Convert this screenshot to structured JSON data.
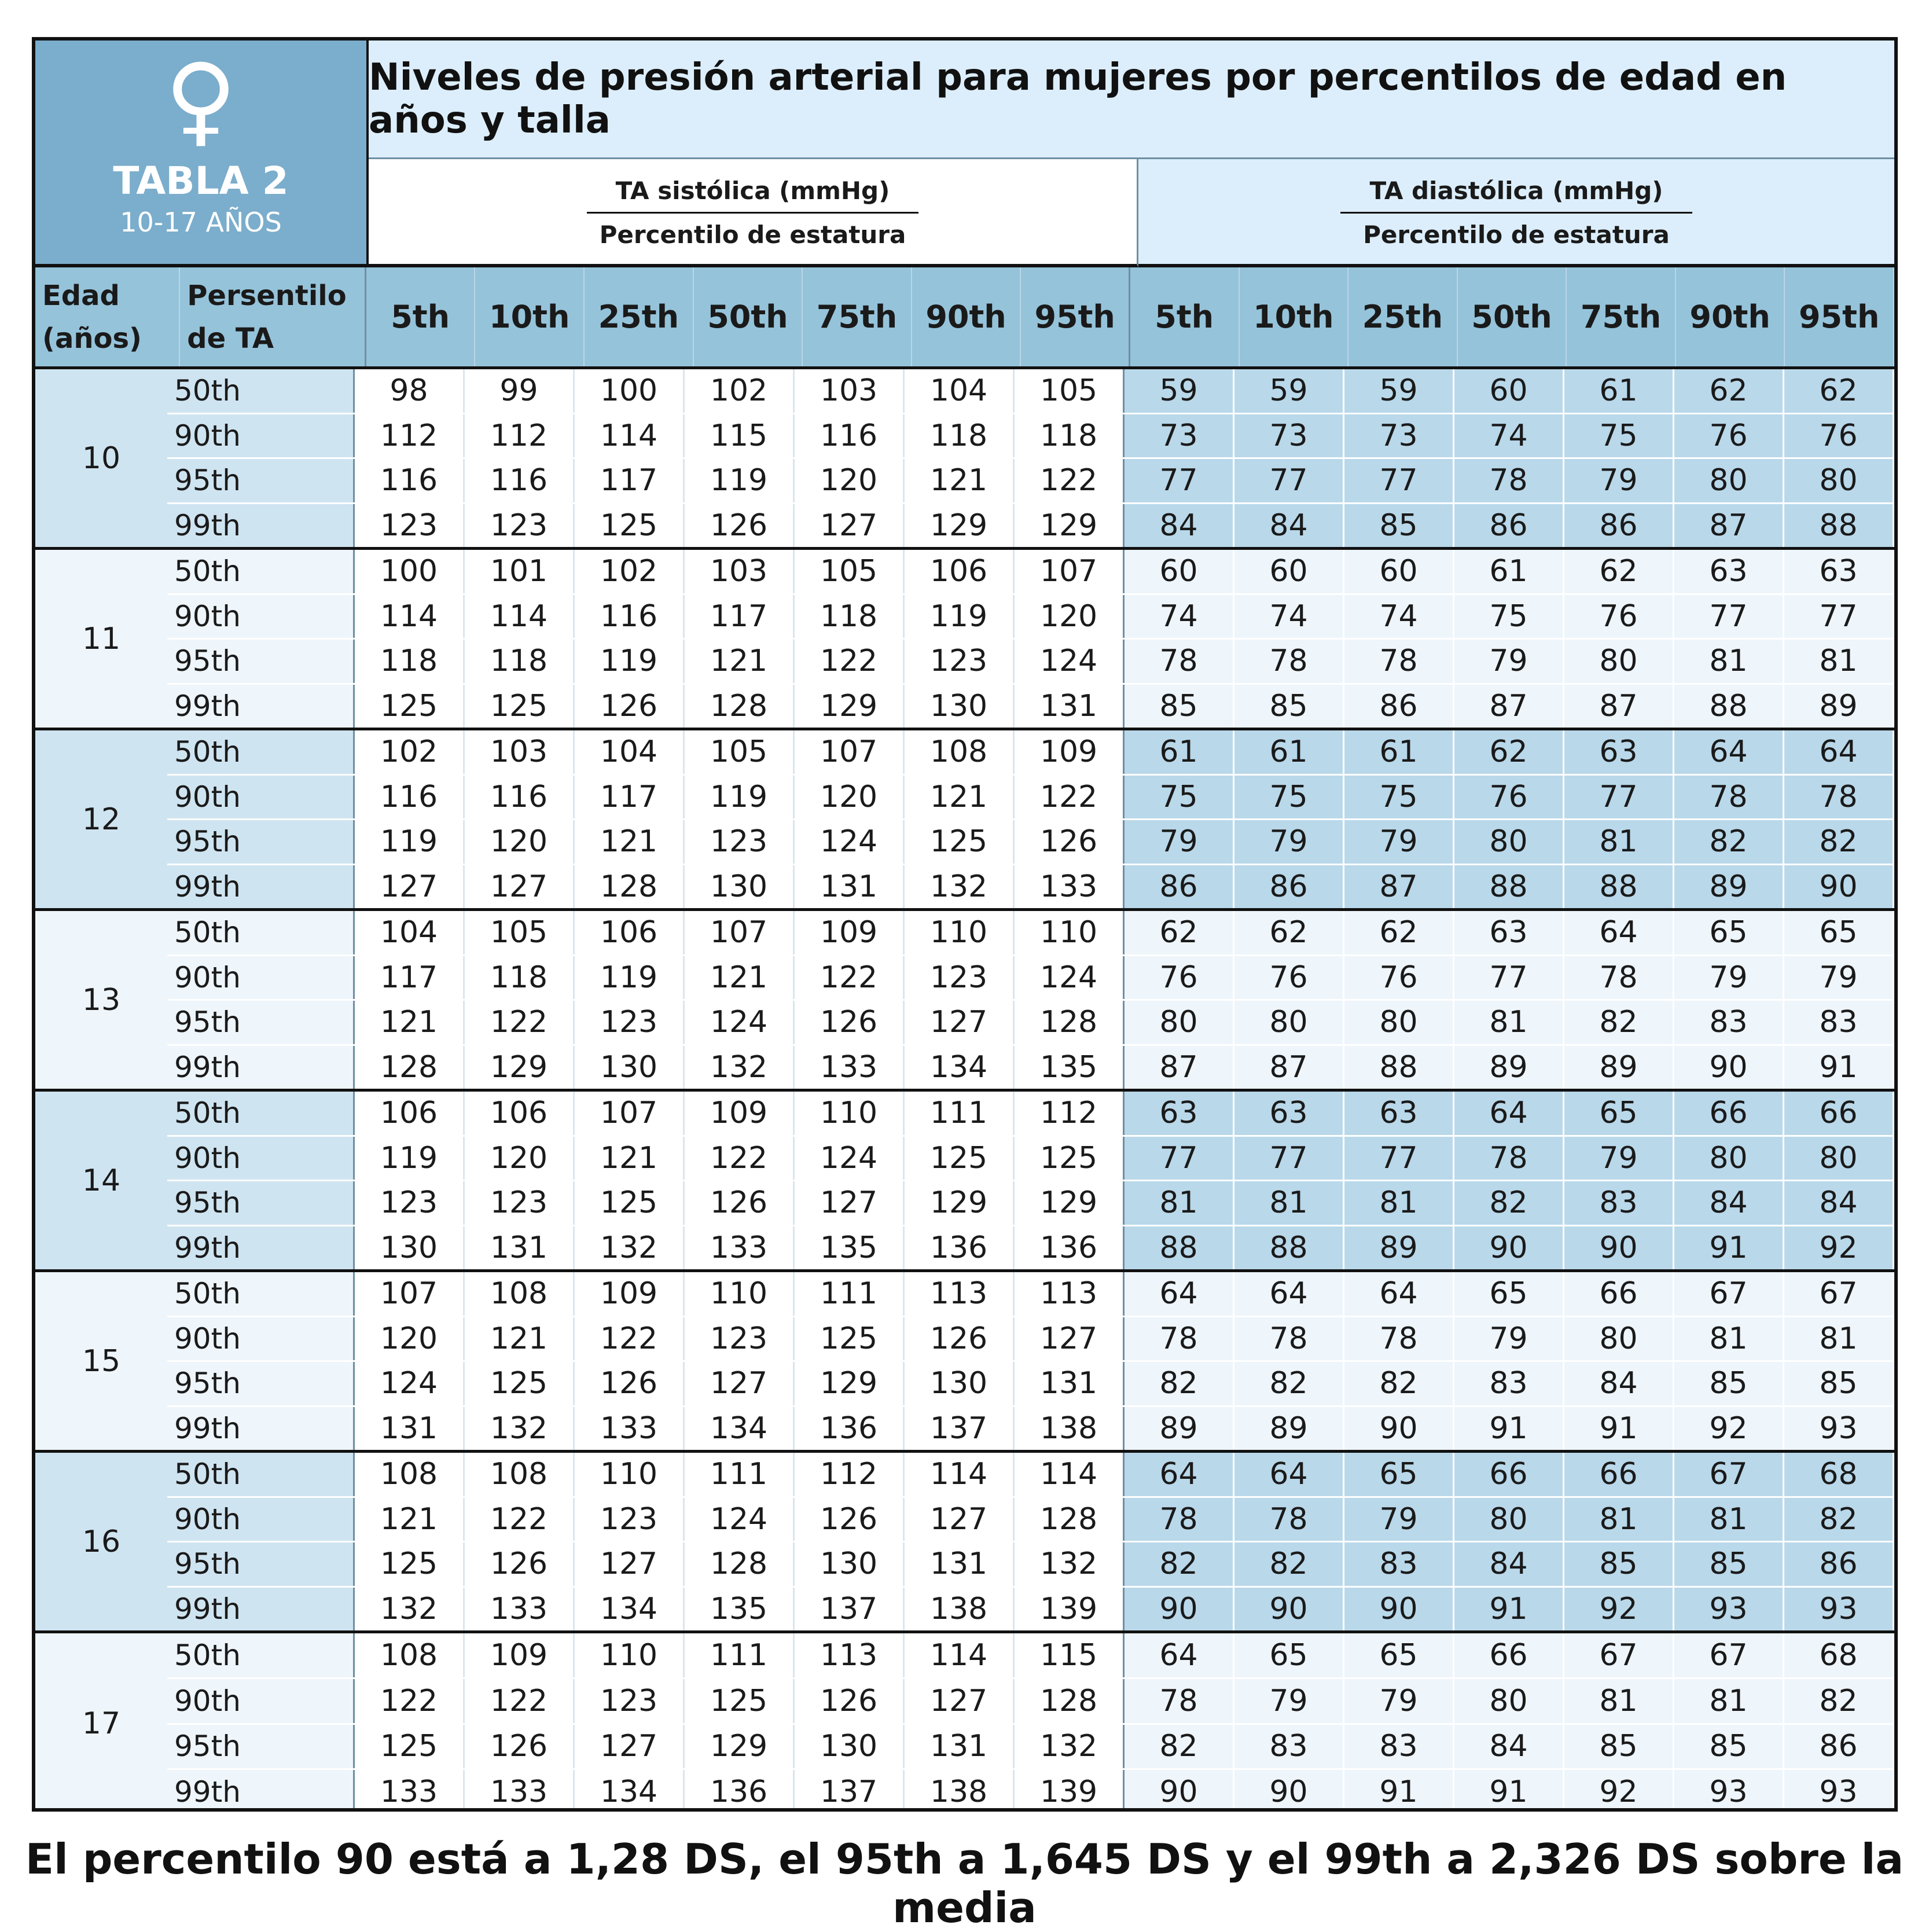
{
  "header": {
    "badge_symbol": "♀",
    "badge_title": "TABLA 2",
    "badge_subtitle": "10-17 AÑOS",
    "title": "Niveles de presión arterial para mujeres por percentilos de edad en años y talla",
    "systolic_title": "TA sistólica (mmHg)",
    "systolic_sub": "Percentilo de estatura",
    "diastolic_title": "TA diastólica (mmHg)",
    "diastolic_sub": "Percentilo de estatura"
  },
  "columns": {
    "age_label_1": "Edad",
    "age_label_2": "(años)",
    "pct_label_1": "Persentilo",
    "pct_label_2": "de TA",
    "height_percentiles": [
      "5th",
      "10th",
      "25th",
      "50th",
      "75th",
      "90th",
      "95th"
    ]
  },
  "table": [
    {
      "age": "10",
      "rows": [
        {
          "p": "50th",
          "s": [
            "98",
            "99",
            "100",
            "102",
            "103",
            "104",
            "105"
          ],
          "d": [
            "59",
            "59",
            "59",
            "60",
            "61",
            "62",
            "62"
          ]
        },
        {
          "p": "90th",
          "s": [
            "112",
            "112",
            "114",
            "115",
            "116",
            "118",
            "118"
          ],
          "d": [
            "73",
            "73",
            "73",
            "74",
            "75",
            "76",
            "76"
          ]
        },
        {
          "p": "95th",
          "s": [
            "116",
            "116",
            "117",
            "119",
            "120",
            "121",
            "122"
          ],
          "d": [
            "77",
            "77",
            "77",
            "78",
            "79",
            "80",
            "80"
          ]
        },
        {
          "p": "99th",
          "s": [
            "123",
            "123",
            "125",
            "126",
            "127",
            "129",
            "129"
          ],
          "d": [
            "84",
            "84",
            "85",
            "86",
            "86",
            "87",
            "88"
          ]
        }
      ]
    },
    {
      "age": "11",
      "rows": [
        {
          "p": "50th",
          "s": [
            "100",
            "101",
            "102",
            "103",
            "105",
            "106",
            "107"
          ],
          "d": [
            "60",
            "60",
            "60",
            "61",
            "62",
            "63",
            "63"
          ]
        },
        {
          "p": "90th",
          "s": [
            "114",
            "114",
            "116",
            "117",
            "118",
            "119",
            "120"
          ],
          "d": [
            "74",
            "74",
            "74",
            "75",
            "76",
            "77",
            "77"
          ]
        },
        {
          "p": "95th",
          "s": [
            "118",
            "118",
            "119",
            "121",
            "122",
            "123",
            "124"
          ],
          "d": [
            "78",
            "78",
            "78",
            "79",
            "80",
            "81",
            "81"
          ]
        },
        {
          "p": "99th",
          "s": [
            "125",
            "125",
            "126",
            "128",
            "129",
            "130",
            "131"
          ],
          "d": [
            "85",
            "85",
            "86",
            "87",
            "87",
            "88",
            "89"
          ]
        }
      ]
    },
    {
      "age": "12",
      "rows": [
        {
          "p": "50th",
          "s": [
            "102",
            "103",
            "104",
            "105",
            "107",
            "108",
            "109"
          ],
          "d": [
            "61",
            "61",
            "61",
            "62",
            "63",
            "64",
            "64"
          ]
        },
        {
          "p": "90th",
          "s": [
            "116",
            "116",
            "117",
            "119",
            "120",
            "121",
            "122"
          ],
          "d": [
            "75",
            "75",
            "75",
            "76",
            "77",
            "78",
            "78"
          ]
        },
        {
          "p": "95th",
          "s": [
            "119",
            "120",
            "121",
            "123",
            "124",
            "125",
            "126"
          ],
          "d": [
            "79",
            "79",
            "79",
            "80",
            "81",
            "82",
            "82"
          ]
        },
        {
          "p": "99th",
          "s": [
            "127",
            "127",
            "128",
            "130",
            "131",
            "132",
            "133"
          ],
          "d": [
            "86",
            "86",
            "87",
            "88",
            "88",
            "89",
            "90"
          ]
        }
      ]
    },
    {
      "age": "13",
      "rows": [
        {
          "p": "50th",
          "s": [
            "104",
            "105",
            "106",
            "107",
            "109",
            "110",
            "110"
          ],
          "d": [
            "62",
            "62",
            "62",
            "63",
            "64",
            "65",
            "65"
          ]
        },
        {
          "p": "90th",
          "s": [
            "117",
            "118",
            "119",
            "121",
            "122",
            "123",
            "124"
          ],
          "d": [
            "76",
            "76",
            "76",
            "77",
            "78",
            "79",
            "79"
          ]
        },
        {
          "p": "95th",
          "s": [
            "121",
            "122",
            "123",
            "124",
            "126",
            "127",
            "128"
          ],
          "d": [
            "80",
            "80",
            "80",
            "81",
            "82",
            "83",
            "83"
          ]
        },
        {
          "p": "99th",
          "s": [
            "128",
            "129",
            "130",
            "132",
            "133",
            "134",
            "135"
          ],
          "d": [
            "87",
            "87",
            "88",
            "89",
            "89",
            "90",
            "91"
          ]
        }
      ]
    },
    {
      "age": "14",
      "rows": [
        {
          "p": "50th",
          "s": [
            "106",
            "106",
            "107",
            "109",
            "110",
            "111",
            "112"
          ],
          "d": [
            "63",
            "63",
            "63",
            "64",
            "65",
            "66",
            "66"
          ]
        },
        {
          "p": "90th",
          "s": [
            "119",
            "120",
            "121",
            "122",
            "124",
            "125",
            "125"
          ],
          "d": [
            "77",
            "77",
            "77",
            "78",
            "79",
            "80",
            "80"
          ]
        },
        {
          "p": "95th",
          "s": [
            "123",
            "123",
            "125",
            "126",
            "127",
            "129",
            "129"
          ],
          "d": [
            "81",
            "81",
            "81",
            "82",
            "83",
            "84",
            "84"
          ]
        },
        {
          "p": "99th",
          "s": [
            "130",
            "131",
            "132",
            "133",
            "135",
            "136",
            "136"
          ],
          "d": [
            "88",
            "88",
            "89",
            "90",
            "90",
            "91",
            "92"
          ]
        }
      ]
    },
    {
      "age": "15",
      "rows": [
        {
          "p": "50th",
          "s": [
            "107",
            "108",
            "109",
            "110",
            "111",
            "113",
            "113"
          ],
          "d": [
            "64",
            "64",
            "64",
            "65",
            "66",
            "67",
            "67"
          ]
        },
        {
          "p": "90th",
          "s": [
            "120",
            "121",
            "122",
            "123",
            "125",
            "126",
            "127"
          ],
          "d": [
            "78",
            "78",
            "78",
            "79",
            "80",
            "81",
            "81"
          ]
        },
        {
          "p": "95th",
          "s": [
            "124",
            "125",
            "126",
            "127",
            "129",
            "130",
            "131"
          ],
          "d": [
            "82",
            "82",
            "82",
            "83",
            "84",
            "85",
            "85"
          ]
        },
        {
          "p": "99th",
          "s": [
            "131",
            "132",
            "133",
            "134",
            "136",
            "137",
            "138"
          ],
          "d": [
            "89",
            "89",
            "90",
            "91",
            "91",
            "92",
            "93"
          ]
        }
      ]
    },
    {
      "age": "16",
      "rows": [
        {
          "p": "50th",
          "s": [
            "108",
            "108",
            "110",
            "111",
            "112",
            "114",
            "114"
          ],
          "d": [
            "64",
            "64",
            "65",
            "66",
            "66",
            "67",
            "68"
          ]
        },
        {
          "p": "90th",
          "s": [
            "121",
            "122",
            "123",
            "124",
            "126",
            "127",
            "128"
          ],
          "d": [
            "78",
            "78",
            "79",
            "80",
            "81",
            "81",
            "82"
          ]
        },
        {
          "p": "95th",
          "s": [
            "125",
            "126",
            "127",
            "128",
            "130",
            "131",
            "132"
          ],
          "d": [
            "82",
            "82",
            "83",
            "84",
            "85",
            "85",
            "86"
          ]
        },
        {
          "p": "99th",
          "s": [
            "132",
            "133",
            "134",
            "135",
            "137",
            "138",
            "139"
          ],
          "d": [
            "90",
            "90",
            "90",
            "91",
            "92",
            "93",
            "93"
          ]
        }
      ]
    },
    {
      "age": "17",
      "rows": [
        {
          "p": "50th",
          "s": [
            "108",
            "109",
            "110",
            "111",
            "113",
            "114",
            "115"
          ],
          "d": [
            "64",
            "65",
            "65",
            "66",
            "67",
            "67",
            "68"
          ]
        },
        {
          "p": "90th",
          "s": [
            "122",
            "122",
            "123",
            "125",
            "126",
            "127",
            "128"
          ],
          "d": [
            "78",
            "79",
            "79",
            "80",
            "81",
            "81",
            "82"
          ]
        },
        {
          "p": "95th",
          "s": [
            "125",
            "126",
            "127",
            "129",
            "130",
            "131",
            "132"
          ],
          "d": [
            "82",
            "83",
            "83",
            "84",
            "85",
            "85",
            "86"
          ]
        },
        {
          "p": "99th",
          "s": [
            "133",
            "133",
            "134",
            "136",
            "137",
            "138",
            "139"
          ],
          "d": [
            "90",
            "90",
            "91",
            "91",
            "92",
            "93",
            "93"
          ]
        }
      ]
    }
  ],
  "footnote": "El percentilo 90 está a 1,28 DS, el 95th a 1,645 DS y el 99th a 2,326 DS sobre la media",
  "colors": {
    "badge": "#7badcc",
    "header_row": "#95c3da",
    "shade": "#cfe4f1",
    "light": "#eef5fb",
    "title_bg": "#dceefb"
  }
}
